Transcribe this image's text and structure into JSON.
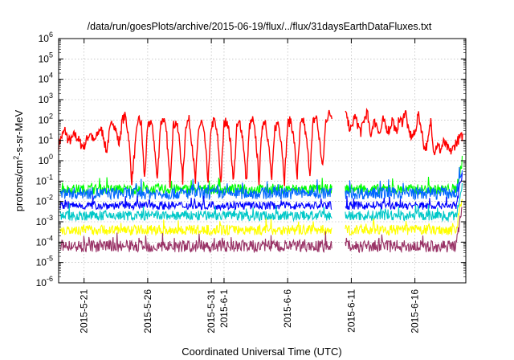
{
  "chart_data": {
    "type": "line",
    "title": "/data/run/goesPlots/archive/2015-06-19/flux/../flux/31daysEarthDataFluxes.txt",
    "xlabel": "Coordinated Universal Time (UTC)",
    "ylabel": "protons/cm2-s-sr-MeV",
    "ylabel_main": "protons/cm",
    "ylabel_sup": "2",
    "ylabel_rest": "-s-sr-MeV",
    "yscale": "log",
    "ylim_exponent": [
      -6,
      6
    ],
    "ytick_exponents": [
      -6,
      -5,
      -4,
      -3,
      -2,
      -1,
      0,
      1,
      2,
      3,
      4,
      5,
      6
    ],
    "ytick_base": "10",
    "xlim": [
      "2015-05-19",
      "2015-06-20"
    ],
    "xticks": [
      {
        "date": "2015-05-21",
        "label": "2015-5-21"
      },
      {
        "date": "2015-05-26",
        "label": "2015-5-26"
      },
      {
        "date": "2015-05-31",
        "label": "2015-5-31"
      },
      {
        "date": "2015-06-01",
        "label": "2015-6-1"
      },
      {
        "date": "2015-06-06",
        "label": "2015-6-6"
      },
      {
        "date": "2015-06-11",
        "label": "2015-6-11"
      },
      {
        "date": "2015-06-16",
        "label": "2015-6-16"
      }
    ],
    "grid": true,
    "data_gap": [
      "2015-06-09T12:00",
      "2015-06-10T12:00"
    ],
    "series": [
      {
        "color": "#ff0000",
        "days": [
          {
            "date": "2015-05-19",
            "daily_log10": [
              0.8,
              1.2,
              1.5,
              1.0
            ]
          },
          {
            "date": "2015-05-20",
            "daily_log10": [
              1.0,
              1.3,
              1.1,
              0.8
            ]
          },
          {
            "date": "2015-05-21",
            "daily_log10": [
              0.7,
              1.1,
              1.4,
              0.9
            ]
          },
          {
            "date": "2015-05-22",
            "daily_log10": [
              1.2,
              1.6,
              1.3,
              0.4
            ]
          },
          {
            "date": "2015-05-23",
            "daily_log10": [
              1.4,
              2.0,
              1.5,
              0.8
            ]
          },
          {
            "date": "2015-05-24",
            "daily_log10": [
              2.0,
              2.2,
              1.2,
              -1.0
            ]
          },
          {
            "date": "2015-05-25",
            "daily_log10": [
              0.6,
              2.1,
              1.8,
              -0.9
            ]
          },
          {
            "date": "2015-05-26",
            "daily_log10": [
              1.6,
              2.0,
              1.0,
              -1.0
            ]
          },
          {
            "date": "2015-05-27",
            "daily_log10": [
              1.8,
              2.1,
              1.2,
              -1.1
            ]
          },
          {
            "date": "2015-05-28",
            "daily_log10": [
              1.7,
              1.9,
              1.0,
              -1.0
            ]
          },
          {
            "date": "2015-05-29",
            "daily_log10": [
              1.8,
              2.0,
              0.8,
              -1.1
            ]
          },
          {
            "date": "2015-05-30",
            "daily_log10": [
              1.6,
              1.9,
              1.0,
              -1.0
            ]
          },
          {
            "date": "2015-05-31",
            "daily_log10": [
              1.7,
              2.0,
              1.1,
              -1.1
            ]
          },
          {
            "date": "2015-06-01",
            "daily_log10": [
              1.8,
              2.0,
              0.9,
              -1.0
            ]
          },
          {
            "date": "2015-06-02",
            "daily_log10": [
              1.6,
              1.9,
              1.0,
              -1.1
            ]
          },
          {
            "date": "2015-06-03",
            "daily_log10": [
              1.7,
              2.0,
              1.1,
              -1.0
            ]
          },
          {
            "date": "2015-06-04",
            "daily_log10": [
              1.8,
              2.0,
              0.8,
              -1.0
            ]
          },
          {
            "date": "2015-06-05",
            "daily_log10": [
              1.6,
              1.9,
              1.0,
              -1.0
            ]
          },
          {
            "date": "2015-06-06",
            "daily_log10": [
              1.8,
              2.0,
              1.0,
              -0.8
            ]
          },
          {
            "date": "2015-06-07",
            "daily_log10": [
              1.7,
              2.0,
              0.9,
              -0.6
            ]
          },
          {
            "date": "2015-06-08",
            "daily_log10": [
              1.9,
              2.2,
              1.0,
              -0.4
            ]
          },
          {
            "date": "2015-06-09",
            "daily_log10": [
              2.0,
              2.3
            ]
          },
          {
            "date": "2015-06-10",
            "daily_log10": [
              2.1,
              1.5,
              2.5,
              1.8
            ]
          },
          {
            "date": "2015-06-11",
            "daily_log10": [
              1.5,
              2.2,
              1.8,
              1.4
            ]
          },
          {
            "date": "2015-06-12",
            "daily_log10": [
              2.0,
              2.4,
              1.2,
              1.9
            ]
          },
          {
            "date": "2015-06-13",
            "daily_log10": [
              1.8,
              1.3,
              2.0,
              1.6
            ]
          },
          {
            "date": "2015-06-14",
            "daily_log10": [
              1.5,
              2.1,
              1.3,
              2.0
            ]
          },
          {
            "date": "2015-06-15",
            "daily_log10": [
              1.9,
              2.5,
              1.4,
              1.2
            ]
          },
          {
            "date": "2015-06-16",
            "daily_log10": [
              1.3,
              2.3,
              1.6,
              0.6
            ]
          },
          {
            "date": "2015-06-17",
            "daily_log10": [
              0.8,
              2.0,
              0.4,
              0.8
            ]
          },
          {
            "date": "2015-06-18",
            "daily_log10": [
              0.5,
              0.9,
              0.7,
              0.4
            ]
          },
          {
            "date": "2015-06-19",
            "daily_log10": [
              0.6,
              0.9,
              1.1,
              1.2
            ]
          },
          {
            "date": "2015-06-20",
            "daily_log10": [
              1.3
            ]
          }
        ]
      },
      {
        "color": "#00ff00",
        "log10_base": -1.4,
        "log10_noise": 0.25,
        "end_log10": 0.1
      },
      {
        "color": "#0066ff",
        "log10_base": -1.6,
        "log10_noise": 0.3,
        "end_log10": -0.3
      },
      {
        "color": "#0000ff",
        "log10_base": -2.2,
        "log10_noise": 0.2,
        "end_log10": -0.5
      },
      {
        "color": "#00c8c8",
        "log10_base": -2.7,
        "log10_noise": 0.25,
        "end_log10": -1.0
      },
      {
        "color": "#ffff00",
        "log10_base": -3.4,
        "log10_noise": 0.25,
        "end_log10": -1.6
      },
      {
        "color": "#993366",
        "log10_base": -4.2,
        "log10_noise": 0.3,
        "end_log10": -1.9
      }
    ]
  }
}
